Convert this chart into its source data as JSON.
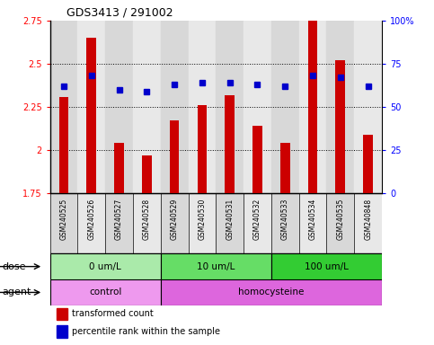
{
  "title": "GDS3413 / 291002",
  "samples": [
    "GSM240525",
    "GSM240526",
    "GSM240527",
    "GSM240528",
    "GSM240529",
    "GSM240530",
    "GSM240531",
    "GSM240532",
    "GSM240533",
    "GSM240534",
    "GSM240535",
    "GSM240848"
  ],
  "bar_values": [
    2.31,
    2.65,
    2.04,
    1.97,
    2.17,
    2.26,
    2.32,
    2.14,
    2.04,
    2.81,
    2.52,
    2.09
  ],
  "dot_values": [
    62,
    68,
    60,
    59,
    63,
    64,
    64,
    63,
    62,
    68,
    67,
    62
  ],
  "ylim_left": [
    1.75,
    2.75
  ],
  "ylim_right": [
    0,
    100
  ],
  "yticks_left": [
    1.75,
    2.0,
    2.25,
    2.5,
    2.75
  ],
  "ytick_labels_left": [
    "1.75",
    "2",
    "2.25",
    "2.5",
    "2.75"
  ],
  "yticks_right": [
    0,
    25,
    50,
    75,
    100
  ],
  "ytick_labels_right": [
    "0",
    "25",
    "50",
    "75",
    "100%"
  ],
  "bar_color": "#cc0000",
  "dot_color": "#0000cc",
  "chart_bg": "#ffffff",
  "col_bg_even": "#d8d8d8",
  "col_bg_odd": "#e8e8e8",
  "dose_groups": [
    {
      "label": "0 um/L",
      "start": 0,
      "end": 4,
      "color": "#aaeaaa"
    },
    {
      "label": "10 um/L",
      "start": 4,
      "end": 8,
      "color": "#66dd66"
    },
    {
      "label": "100 um/L",
      "start": 8,
      "end": 12,
      "color": "#33cc33"
    }
  ],
  "agent_groups": [
    {
      "label": "control",
      "start": 0,
      "end": 4,
      "color": "#ee99ee"
    },
    {
      "label": "homocysteine",
      "start": 4,
      "end": 12,
      "color": "#dd66dd"
    }
  ],
  "dose_label": "dose",
  "agent_label": "agent",
  "legend_items": [
    {
      "color": "#cc0000",
      "label": "transformed count"
    },
    {
      "color": "#0000cc",
      "label": "percentile rank within the sample"
    }
  ]
}
